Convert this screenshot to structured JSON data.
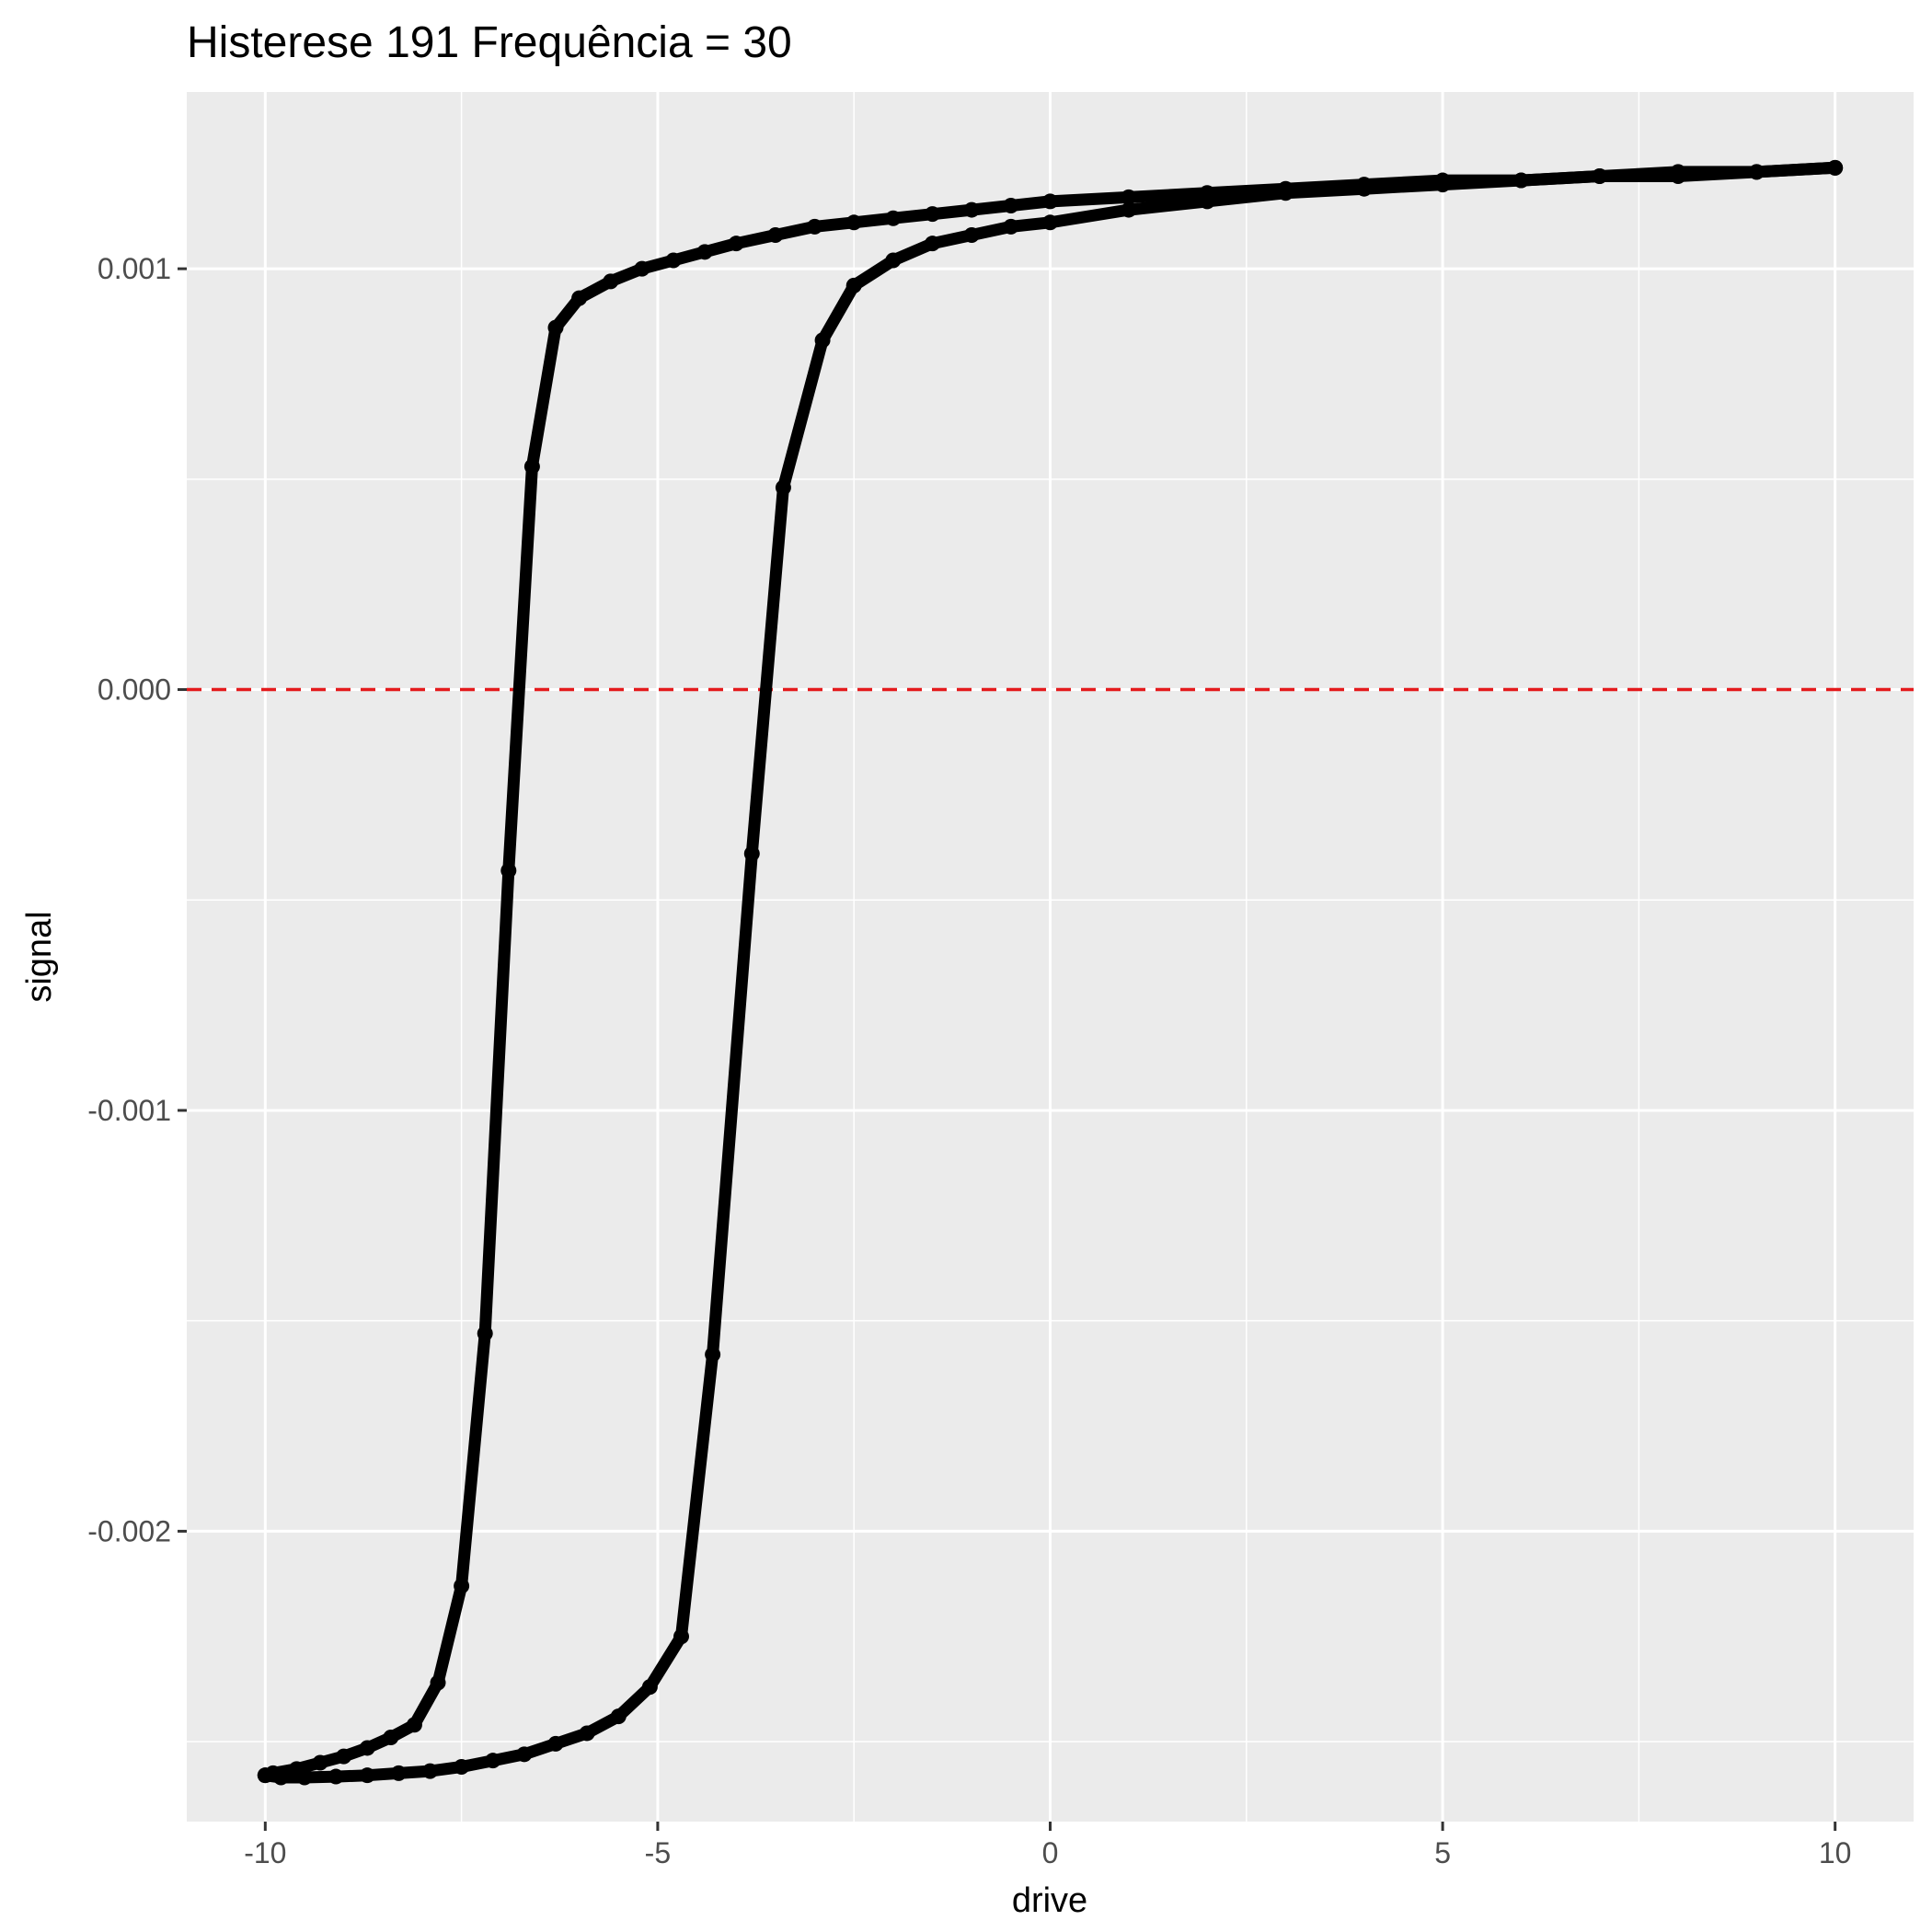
{
  "chart_data": {
    "type": "line",
    "title": "Histerese 191 Frequência = 30",
    "xlabel": "drive",
    "ylabel": "signal",
    "xlim": [
      -11,
      11
    ],
    "ylim": [
      -0.00269,
      0.00142
    ],
    "x_ticks": [
      -10,
      -5,
      0,
      5,
      10
    ],
    "x_tick_labels": [
      "-10",
      "-5",
      "0",
      "5",
      "10"
    ],
    "y_ticks": [
      -0.002,
      -0.001,
      0.0,
      0.001
    ],
    "y_tick_labels": [
      "-0.002",
      "-0.001",
      "0.000",
      "0.001"
    ],
    "grid": true,
    "legend": "none",
    "reference_line": {
      "axis": "y",
      "value": 0,
      "style": "dashed",
      "color": "#e41a1c"
    },
    "colors": {
      "panel": "#ebebeb",
      "grid": "#ffffff",
      "line": "#000000"
    },
    "series": [
      {
        "x": [
          -10,
          -9.9,
          -9.6,
          -9.3,
          -9.0,
          -8.7,
          -8.4,
          -8.1,
          -7.8,
          -7.5,
          -7.2,
          -6.9,
          -6.6,
          -6.3,
          -6.0,
          -5.6,
          -5.2,
          -4.8,
          -4.4,
          -4.0,
          -3.5,
          -3.0,
          -2.5,
          -2.0,
          -1.5,
          -1.0,
          -0.5,
          0,
          1,
          2,
          3,
          4,
          5,
          6,
          7,
          8,
          9,
          10
        ],
        "values": [
          -0.00258,
          -0.002575,
          -0.002565,
          -0.00255,
          -0.002535,
          -0.002515,
          -0.00249,
          -0.00246,
          -0.00236,
          -0.00213,
          -0.00153,
          -0.00043,
          0.00053,
          0.00086,
          0.00093,
          0.00097,
          0.001,
          0.00102,
          0.00104,
          0.00106,
          0.00108,
          0.0011,
          0.00111,
          0.00112,
          0.00113,
          0.00114,
          0.00115,
          0.00116,
          0.00117,
          0.00118,
          0.00119,
          0.0012,
          0.00121,
          0.00121,
          0.00122,
          0.00122,
          0.00123,
          0.00124
        ]
      },
      {
        "x": [
          10,
          9,
          8,
          7,
          6,
          5,
          4,
          3,
          2,
          1,
          0,
          -0.5,
          -1.0,
          -1.5,
          -2.0,
          -2.5,
          -2.9,
          -3.4,
          -3.8,
          -4.3,
          -4.7,
          -5.1,
          -5.5,
          -5.9,
          -6.3,
          -6.7,
          -7.1,
          -7.5,
          -7.9,
          -8.3,
          -8.7,
          -9.1,
          -9.5,
          -9.8,
          -10
        ],
        "values": [
          0.00124,
          0.00123,
          0.00123,
          0.00122,
          0.00121,
          0.0012,
          0.00119,
          0.00118,
          0.00116,
          0.00114,
          0.00111,
          0.0011,
          0.00108,
          0.00106,
          0.00102,
          0.00096,
          0.00083,
          0.00048,
          -0.00039,
          -0.00158,
          -0.00225,
          -0.00237,
          -0.00244,
          -0.00248,
          -0.002505,
          -0.00253,
          -0.002545,
          -0.00256,
          -0.00257,
          -0.002575,
          -0.00258,
          -0.002583,
          -0.002585,
          -0.002585,
          -0.00258
        ]
      }
    ]
  }
}
